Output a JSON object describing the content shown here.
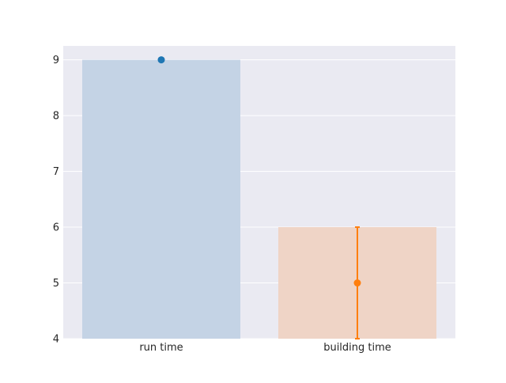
{
  "chart_data": {
    "type": "bar",
    "title": "",
    "xlabel": "",
    "ylabel": "",
    "categories": [
      "run time",
      "building time"
    ],
    "ylim": [
      4,
      9.25
    ],
    "yticks": [
      4,
      5,
      6,
      7,
      8,
      9
    ],
    "grid": true,
    "bars": [
      {
        "category": "run time",
        "value": 9,
        "color": "#c4d3e5"
      },
      {
        "category": "building time",
        "value": 6,
        "color": "#efd4c6"
      }
    ],
    "points": [
      {
        "category": "run time",
        "value": 9,
        "error_low": 9,
        "error_high": 9,
        "color": "#1f77b4"
      },
      {
        "category": "building time",
        "value": 5,
        "error_low": 4,
        "error_high": 6,
        "color": "#ff7f0e"
      }
    ],
    "background_color": "#eaeaf2",
    "grid_color": "#ffffff"
  }
}
